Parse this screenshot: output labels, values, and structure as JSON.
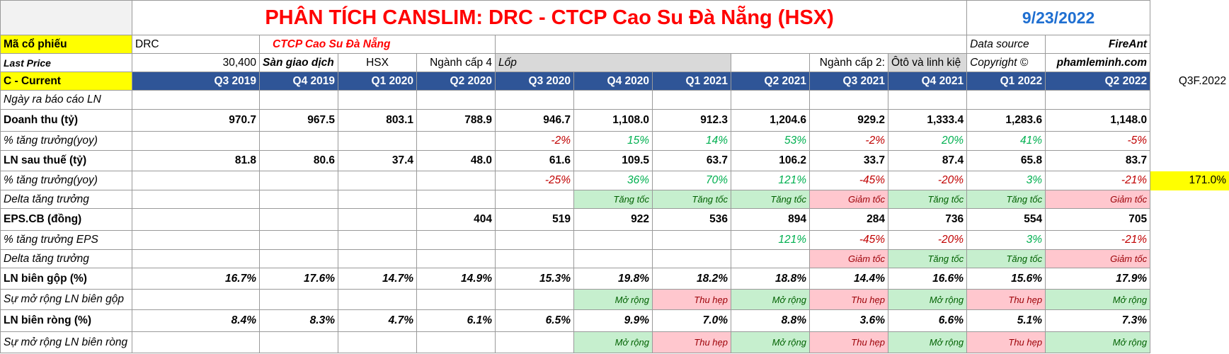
{
  "title": "PHÂN TÍCH CANSLIM: DRC - CTCP Cao Su Đà Nẵng (HSX)",
  "date": "9/23/2022",
  "info": {
    "ticker_label": "Mã cổ phiếu",
    "ticker": "DRC",
    "company": "CTCP Cao Su Đà Nẵng",
    "source_label": "Data source",
    "source": "FireAnt",
    "price_label": "Last Price",
    "price": "30,400",
    "exchange_label": "Sàn giao dịch",
    "exchange": "HSX",
    "industry4_label": "Ngành cấp 4",
    "industry4": "Lốp",
    "industry2_label": "Ngành cấp 2:",
    "industry2": "Ôtô và linh kiệ",
    "copyright": "Copyright ©",
    "website": "phamleminh.com"
  },
  "header": {
    "label": "C - Current",
    "quarters": [
      "Q3 2019",
      "Q4 2019",
      "Q1 2020",
      "Q2 2020",
      "Q3 2020",
      "Q4 2020",
      "Q1 2021",
      "Q2 2021",
      "Q3 2021",
      "Q4 2021",
      "Q1 2022",
      "Q2 2022"
    ],
    "extra": "Q3F.2022"
  },
  "rows": [
    {
      "label": "Ngày ra báo cáo LN",
      "values": [
        null,
        null,
        null,
        null,
        null,
        null,
        null,
        null,
        null,
        null,
        null,
        null
      ]
    },
    {
      "label": "Doanh thu (tỷ)",
      "values": [
        "970.7",
        "967.5",
        "803.1",
        "788.9",
        "946.7",
        "1,108.0",
        "912.3",
        "1,204.6",
        "929.2",
        "1,333.4",
        "1,283.6",
        "1,148.0"
      ]
    },
    {
      "label": "% tăng trưởng(yoy)",
      "values": [
        null,
        null,
        null,
        null,
        "-2%",
        "15%",
        "14%",
        "53%",
        "-2%",
        "20%",
        "41%",
        "-5%"
      ]
    },
    {
      "label": "LN sau thuế (tỷ)",
      "values": [
        "81.8",
        "80.6",
        "37.4",
        "48.0",
        "61.6",
        "109.5",
        "63.7",
        "106.2",
        "33.7",
        "87.4",
        "65.8",
        "83.7"
      ]
    },
    {
      "label": "% tăng trưởng(yoy)",
      "values": [
        null,
        null,
        null,
        null,
        "-25%",
        "36%",
        "70%",
        "121%",
        "-45%",
        "-20%",
        "3%",
        "-21%"
      ],
      "extra": "171.0%"
    },
    {
      "label": "Delta tăng trưởng",
      "values": [
        null,
        null,
        null,
        null,
        null,
        "Tăng tốc",
        "Tăng tốc",
        "Tăng tốc",
        "Giảm tốc",
        "Tăng tốc",
        "Tăng tốc",
        "Giảm tốc"
      ]
    },
    {
      "label": "EPS.CB (đồng)",
      "values": [
        null,
        null,
        null,
        "404",
        "519",
        "922",
        "536",
        "894",
        "284",
        "736",
        "554",
        "705"
      ]
    },
    {
      "label": "% tăng trưởng EPS",
      "values": [
        null,
        null,
        null,
        null,
        null,
        null,
        null,
        "121%",
        "-45%",
        "-20%",
        "3%",
        "-21%"
      ]
    },
    {
      "label": "Delta tăng trưởng",
      "values": [
        null,
        null,
        null,
        null,
        null,
        null,
        null,
        null,
        "Giảm tốc",
        "Tăng tốc",
        "Tăng tốc",
        "Giảm tốc"
      ]
    },
    {
      "label": "LN biên gộp (%)",
      "values": [
        "16.7%",
        "17.6%",
        "14.7%",
        "14.9%",
        "15.3%",
        "19.8%",
        "18.2%",
        "18.8%",
        "14.4%",
        "16.6%",
        "15.6%",
        "17.9%"
      ]
    },
    {
      "label": "Sự mở rộng LN biên gộp",
      "values": [
        null,
        null,
        null,
        null,
        null,
        "Mở rộng",
        "Thu hẹp",
        "Mở rộng",
        "Thu hẹp",
        "Mở rộng",
        "Thu hẹp",
        "Mở rộng"
      ]
    },
    {
      "label": "LN biên ròng (%)",
      "values": [
        "8.4%",
        "8.3%",
        "4.7%",
        "6.1%",
        "6.5%",
        "9.9%",
        "7.0%",
        "8.8%",
        "3.6%",
        "6.6%",
        "5.1%",
        "7.3%"
      ]
    },
    {
      "label": "Sự mở rộng LN biên ròng",
      "values": [
        null,
        null,
        null,
        null,
        null,
        "Mở rộng",
        "Thu hẹp",
        "Mở rộng",
        "Thu hẹp",
        "Mở rộng",
        "Thu hẹp",
        "Mở rộng"
      ]
    }
  ]
}
